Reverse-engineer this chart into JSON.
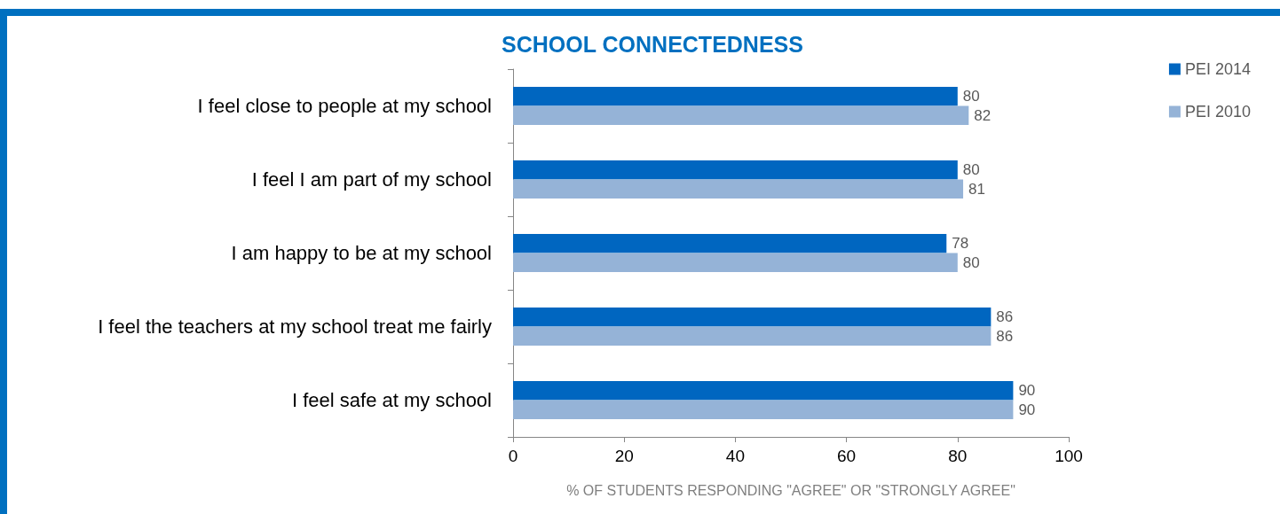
{
  "chart_data": {
    "type": "bar",
    "orientation": "horizontal",
    "title": "SCHOOL CONNECTEDNESS",
    "xlabel": "% OF STUDENTS RESPONDING \"AGREE\" OR \"STRONGLY AGREE\"",
    "categories": [
      "I feel close to people at my school",
      "I feel I am part of my school",
      "I am happy to be at my school",
      "I feel the teachers at my school treat me fairly",
      "I feel safe at my school"
    ],
    "series": [
      {
        "name": "PEI 2014",
        "color": "#0066c0",
        "values": [
          80,
          80,
          78,
          86,
          90
        ]
      },
      {
        "name": "PEI 2010",
        "color": "#95b3d7",
        "values": [
          82,
          81,
          80,
          86,
          90
        ]
      }
    ],
    "xlim": [
      0,
      100
    ],
    "xticks": [
      0,
      20,
      40,
      60,
      80,
      100
    ],
    "grid": false,
    "legend": "top right",
    "data_labels": true
  }
}
